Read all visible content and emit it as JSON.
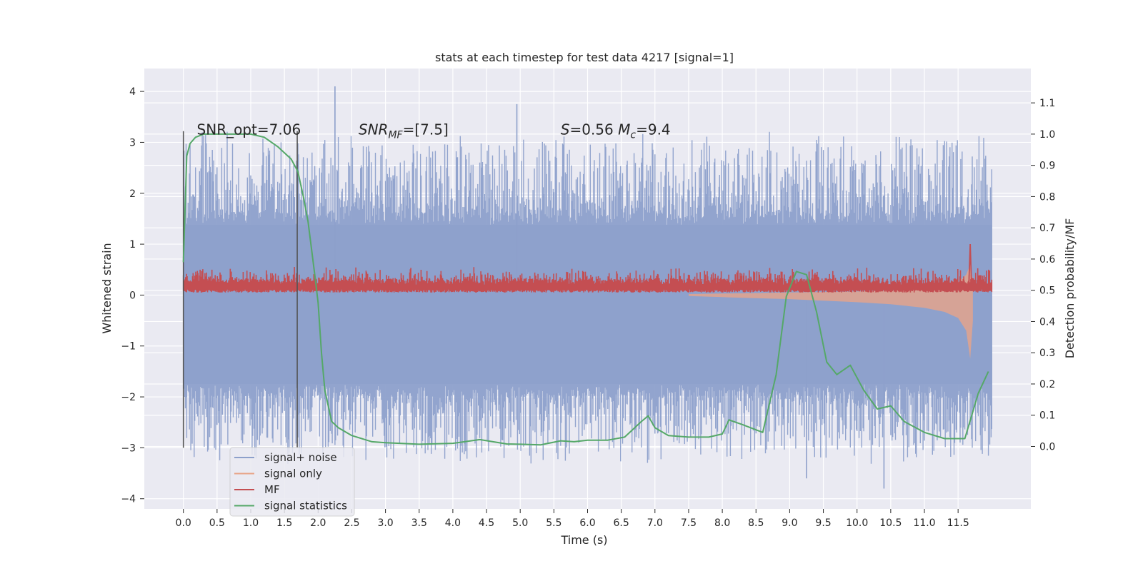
{
  "chart_data": {
    "type": "line",
    "title": "stats at each timestep for test data 4217 [signal=1]",
    "xlabel": "Time (s)",
    "ylabel_left": "Whitened strain",
    "ylabel_right": "Detection probability/MF",
    "xlim": [
      -0.58,
      12.58
    ],
    "ylim_left": [
      -4.2,
      4.45
    ],
    "ylim_right": [
      -0.2,
      1.21
    ],
    "xticks": [
      0.0,
      0.5,
      1.0,
      1.5,
      2.0,
      2.5,
      3.0,
      3.5,
      4.0,
      4.5,
      5.0,
      5.5,
      6.0,
      6.5,
      7.0,
      7.5,
      8.0,
      8.5,
      9.0,
      9.5,
      10.0,
      10.5,
      11.0,
      11.5
    ],
    "xtick_labels": [
      "0.0",
      "0.5",
      "1.0",
      "1.5",
      "2.0",
      "2.5",
      "3.0",
      "3.5",
      "4.0",
      "4.5",
      "5.0",
      "5.5",
      "6.0",
      "6.5",
      "7.0",
      "7.5",
      "8.0",
      "8.5",
      "9.0",
      "9.5",
      "10.0",
      "10.5",
      "11.0",
      "11.5"
    ],
    "yticks_left": [
      -4,
      -3,
      -2,
      -1,
      0,
      1,
      2,
      3,
      4
    ],
    "ytick_labels_left": [
      "−4",
      "−3",
      "−2",
      "−1",
      "0",
      "1",
      "2",
      "3",
      "4"
    ],
    "yticks_right": [
      0.0,
      0.1,
      0.2,
      0.3,
      0.4,
      0.5,
      0.6,
      0.7,
      0.8,
      0.9,
      1.0,
      1.1
    ],
    "ytick_labels_right": [
      "0.0",
      "0.1",
      "0.2",
      "0.3",
      "0.4",
      "0.5",
      "0.6",
      "0.7",
      "0.8",
      "0.9",
      "1.0",
      "1.1"
    ],
    "grid": true,
    "background": "#eaeaf2",
    "legend_position": "lower-left",
    "annotations": [
      {
        "text": "SNR_opt=7.06",
        "x": 0.2,
        "y": 3.15
      },
      {
        "text": "SNR_MF=[7.5]",
        "x": 2.6,
        "y": 3.15
      },
      {
        "text": "S=0.56  M_c=9.4",
        "x": 5.6,
        "y": 3.15
      }
    ],
    "vlines": [
      {
        "x": 0.0,
        "y0": -3.0,
        "y1": 3.22
      },
      {
        "x": 1.69,
        "y0": -3.0,
        "y1": 3.22
      }
    ],
    "series": [
      {
        "name": "signal+ noise",
        "color": "#8da0cb",
        "kind": "noise-band",
        "x_range": [
          0.0,
          12.0
        ],
        "core_band": [
          -1.75,
          1.38
        ],
        "spike_range": [
          -3.55,
          4.1
        ],
        "description_points": [
          [
            2.25,
            4.1
          ],
          [
            4.95,
            3.75
          ],
          [
            10.4,
            -3.8
          ],
          [
            9.25,
            -3.6
          ]
        ]
      },
      {
        "name": "signal only",
        "color": "#e8a488",
        "kind": "chirp",
        "x": [
          7.5,
          8.0,
          8.5,
          9.0,
          9.5,
          10.0,
          10.5,
          11.0,
          11.3,
          11.5,
          11.62,
          11.68,
          11.72
        ],
        "upper": [
          0.02,
          0.03,
          0.04,
          0.05,
          0.06,
          0.07,
          0.09,
          0.12,
          0.16,
          0.25,
          0.4,
          0.6,
          0.3
        ],
        "lower": [
          -0.02,
          -0.04,
          -0.06,
          -0.08,
          -0.11,
          -0.14,
          -0.18,
          -0.25,
          -0.33,
          -0.45,
          -0.7,
          -1.25,
          -0.5
        ]
      },
      {
        "name": "MF",
        "color": "#c44e52",
        "kind": "mf-band",
        "x_range": [
          0.0,
          12.0
        ],
        "band": [
          0.05,
          0.3
        ],
        "peak": {
          "x": 11.68,
          "y": 1.0
        }
      },
      {
        "name": "signal statistics",
        "color": "#55a868",
        "axis": "right",
        "x": [
          0.0,
          0.05,
          0.1,
          0.18,
          0.3,
          0.5,
          0.8,
          1.0,
          1.2,
          1.4,
          1.6,
          1.7,
          1.78,
          1.85,
          1.95,
          2.0,
          2.05,
          2.1,
          2.2,
          2.3,
          2.5,
          2.8,
          3.0,
          3.5,
          4.0,
          4.4,
          4.8,
          5.0,
          5.3,
          5.6,
          5.8,
          6.0,
          6.3,
          6.55,
          6.8,
          6.9,
          7.0,
          7.2,
          7.5,
          7.8,
          8.0,
          8.1,
          8.3,
          8.6,
          8.8,
          8.95,
          9.1,
          9.25,
          9.4,
          9.55,
          9.7,
          9.9,
          10.1,
          10.3,
          10.5,
          10.7,
          11.0,
          11.3,
          11.6,
          11.8,
          11.95
        ],
        "values": [
          0.59,
          0.93,
          0.97,
          0.99,
          1.0,
          1.0,
          1.0,
          1.0,
          0.99,
          0.96,
          0.92,
          0.88,
          0.8,
          0.72,
          0.55,
          0.46,
          0.3,
          0.18,
          0.08,
          0.06,
          0.035,
          0.015,
          0.012,
          0.007,
          0.01,
          0.022,
          0.008,
          0.007,
          0.005,
          0.018,
          0.015,
          0.02,
          0.02,
          0.03,
          0.08,
          0.098,
          0.06,
          0.035,
          0.03,
          0.03,
          0.04,
          0.085,
          0.07,
          0.045,
          0.23,
          0.48,
          0.56,
          0.55,
          0.43,
          0.27,
          0.23,
          0.26,
          0.18,
          0.12,
          0.13,
          0.08,
          0.045,
          0.025,
          0.025,
          0.17,
          0.24
        ]
      }
    ]
  }
}
